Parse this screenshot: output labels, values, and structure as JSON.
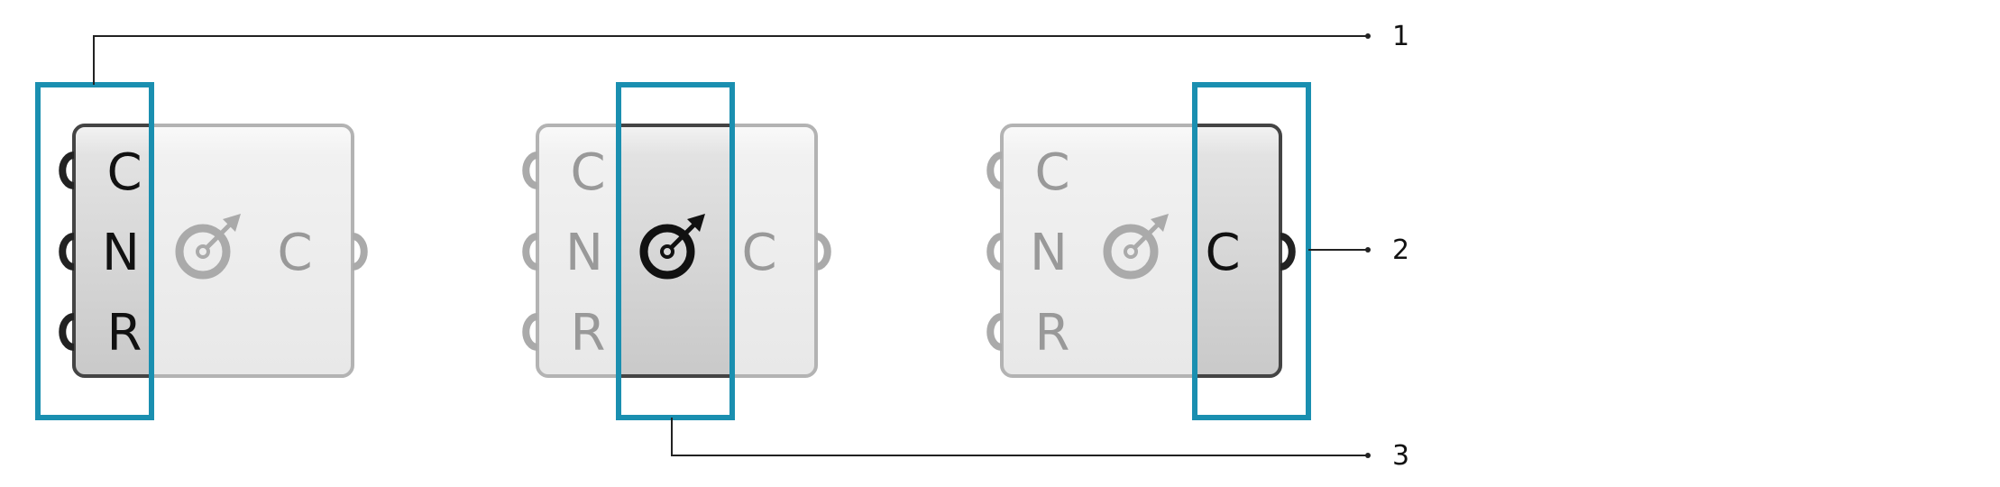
{
  "colors": {
    "highlight": "#1a8fb0",
    "active_text": "#111111",
    "inactive_text": "#999999",
    "active_border": "#444444",
    "inactive_border": "#b3b3b3",
    "leader_line": "#222222"
  },
  "components": [
    {
      "icon": "circle-arrow-icon",
      "inputs": [
        "C",
        "N",
        "R"
      ],
      "output": "C",
      "highlighted_part": "inputs"
    },
    {
      "icon": "circle-arrow-icon",
      "inputs": [
        "C",
        "N",
        "R"
      ],
      "output": "C",
      "highlighted_part": "icon"
    },
    {
      "icon": "circle-arrow-icon",
      "inputs": [
        "C",
        "N",
        "R"
      ],
      "output": "C",
      "highlighted_part": "output"
    }
  ],
  "callouts": [
    "1",
    "2",
    "3"
  ]
}
